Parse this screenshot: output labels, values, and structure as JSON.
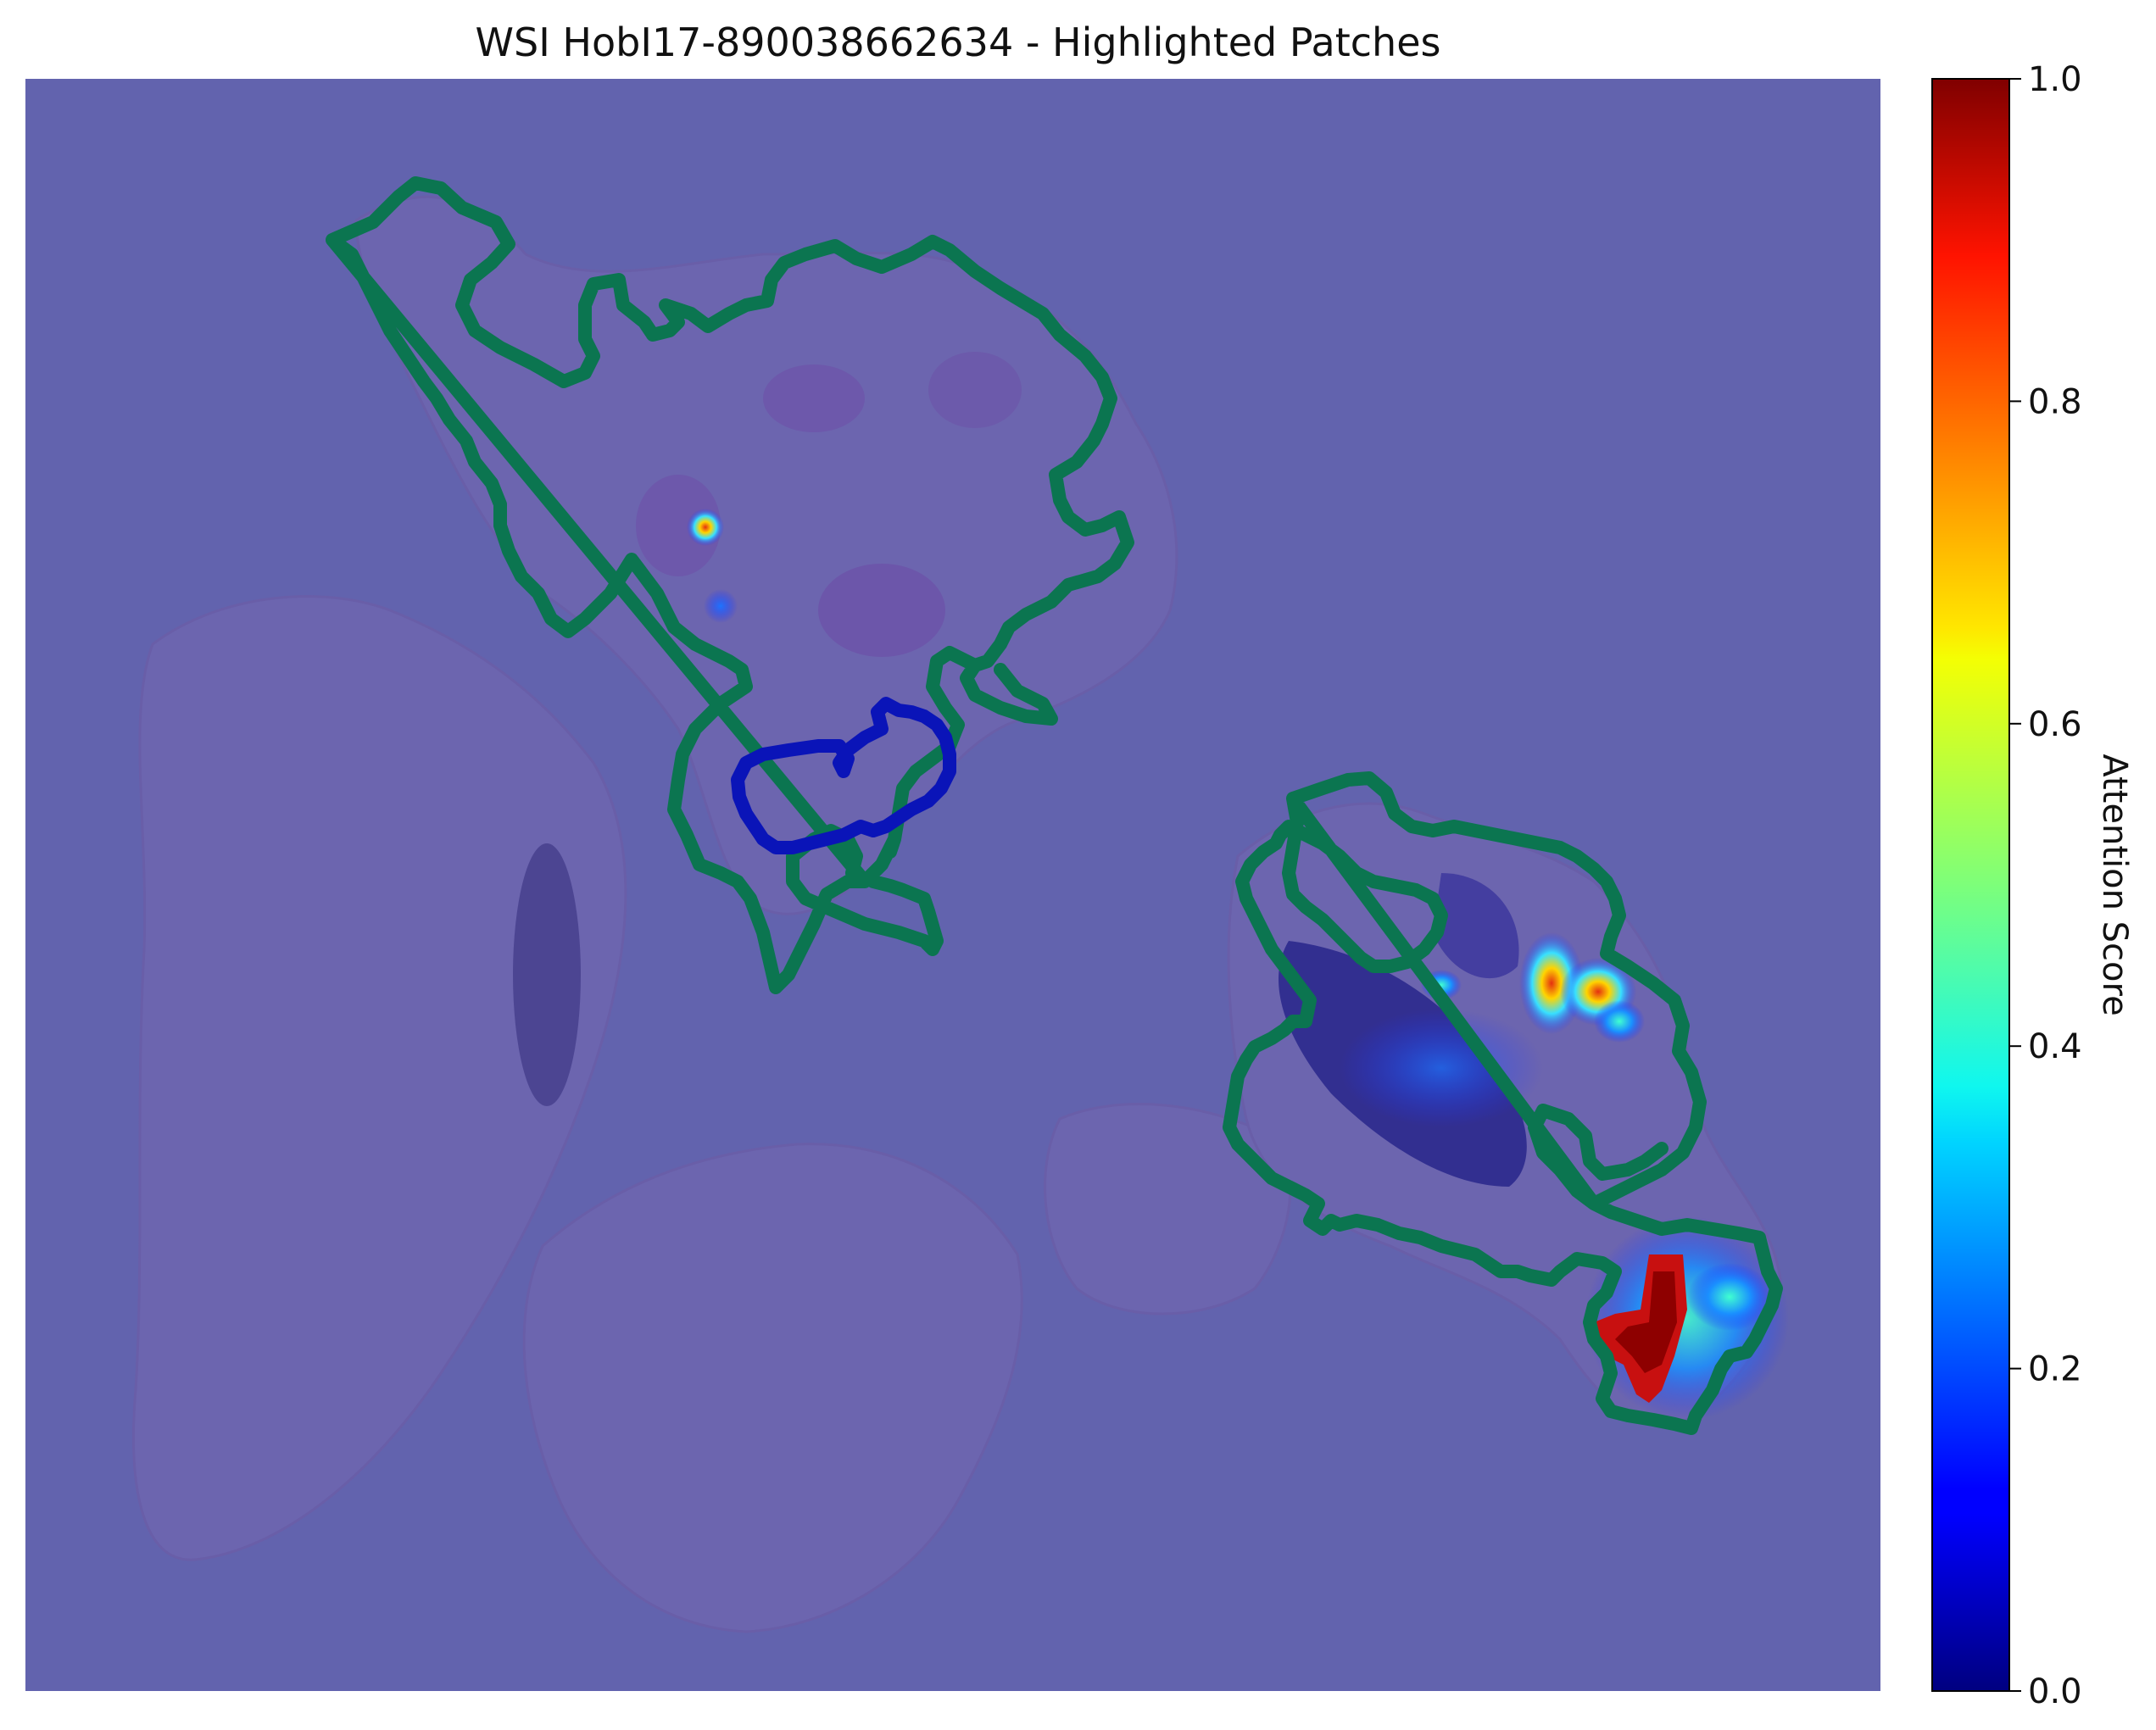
{
  "chart_data": {
    "type": "heatmap",
    "title": "WSI HobI17-890038662634 - Highlighted Patches",
    "colorbar": {
      "label": "Attention Score",
      "colormap": "jet",
      "range": [
        0.0,
        1.0
      ],
      "ticks": [
        {
          "value": 0.0,
          "label": "0.0"
        },
        {
          "value": 0.2,
          "label": "0.2"
        },
        {
          "value": 0.4,
          "label": "0.4"
        },
        {
          "value": 0.6,
          "label": "0.6"
        },
        {
          "value": 0.8,
          "label": "0.8"
        },
        {
          "value": 1.0,
          "label": "1.0"
        }
      ]
    },
    "background_color": "#6263ae",
    "annotation_colors": {
      "tumor_outline": "#0b7550",
      "other_outline": "#0a14b8"
    },
    "attention_hotspots": [
      {
        "region": "upper-left tissue",
        "score": 0.9
      },
      {
        "region": "upper-left tissue",
        "score": 0.3
      },
      {
        "region": "right tissue center",
        "score": 0.85
      },
      {
        "region": "right tissue center",
        "score": 0.8
      },
      {
        "region": "right tissue center-left",
        "score": 0.5
      },
      {
        "region": "lower-right tissue",
        "score": 1.0
      },
      {
        "region": "lower-right tissue",
        "score": 0.4
      },
      {
        "region": "lower-right tissue",
        "score": 0.35
      }
    ]
  }
}
